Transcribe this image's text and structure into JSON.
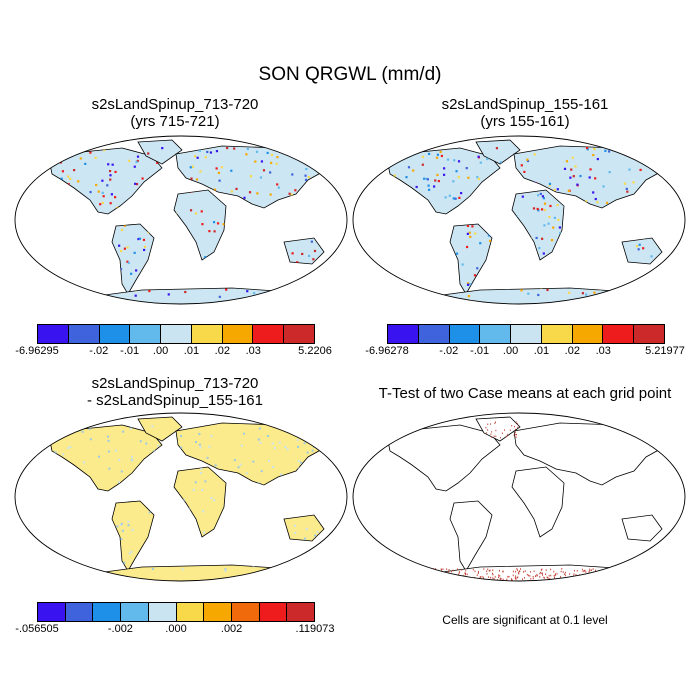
{
  "title": "SON QRGWL (mm/d)",
  "panels": [
    {
      "id": "p1",
      "title_line1": "s2sLandSpinup_713-720",
      "title_line2": "(yrs 715-721)",
      "fill": "#cde6f4",
      "colorbar": {
        "labels": [
          "-6.96295",
          "-.02",
          "-.01",
          ".00",
          ".01",
          ".02",
          ".03",
          "5.2206"
        ]
      }
    },
    {
      "id": "p2",
      "title_line1": "s2sLandSpinup_155-161",
      "title_line2": "(yrs 155-161)",
      "fill": "#cde6f4",
      "colorbar": {
        "labels": [
          "-6.96278",
          "-.02",
          "-.01",
          ".00",
          ".01",
          ".02",
          ".03",
          "5.21977"
        ]
      }
    },
    {
      "id": "p3",
      "title_line1": "s2sLandSpinup_713-720",
      "title_line2": "- s2sLandSpinup_155-161",
      "fill": "#fbeb8c",
      "colorbar": {
        "labels": [
          "-.056505",
          "-.002",
          ".000",
          ".002",
          ".119073"
        ]
      }
    },
    {
      "id": "p4",
      "title_line1": "T-Test of two Case means at each grid point",
      "title_line2": "",
      "note": "Cells are significant at 0.1 level",
      "fill": "#ffffff"
    }
  ],
  "colors": {
    "diff_bar": [
      "#3a14f0",
      "#3e63dc",
      "#1f90e8",
      "#62baec",
      "#cbe4f2",
      "#f8d94a",
      "#f6a800",
      "#f06a0b",
      "#ee1c1c",
      "#cc2a2a"
    ],
    "field_bar": [
      "#3a14f0",
      "#3e63dc",
      "#1f90e8",
      "#62baec",
      "#cbe4f2",
      "#f8d94a",
      "#f6a800",
      "#ee1c1c",
      "#cc2a2a"
    ]
  }
}
